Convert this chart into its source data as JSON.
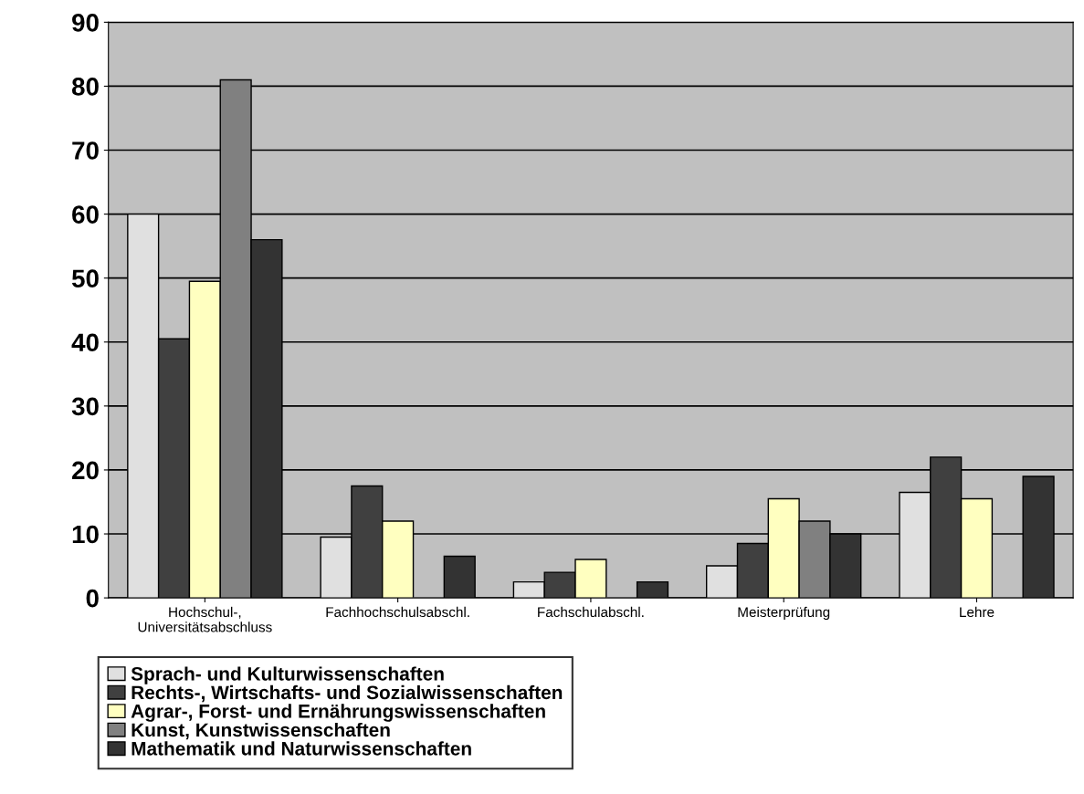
{
  "chart_data": {
    "type": "bar",
    "categories": [
      "Hochschul-,\nUniversitätsabschluss",
      "Fachhochschulsabschl.",
      "Fachschulabschl.",
      "Meisterprüfung",
      "Lehre"
    ],
    "series": [
      {
        "name": "Sprach- und Kulturwissenschaften",
        "color": "#e0e0e0",
        "values": [
          60,
          9.5,
          2.5,
          5,
          16.5
        ]
      },
      {
        "name": "Rechts-, Wirtschafts- und Sozialwissenschaften",
        "color": "#404040",
        "values": [
          40.5,
          17.5,
          4,
          8.5,
          22
        ]
      },
      {
        "name": "Agrar-, Forst- und Ernährungswissenschaften",
        "color": "#ffffc0",
        "values": [
          49.5,
          12,
          6,
          15.5,
          15.5
        ]
      },
      {
        "name": "Kunst, Kunstwissenschaften",
        "color": "#808080",
        "values": [
          81,
          0,
          0,
          12,
          0
        ]
      },
      {
        "name": "Mathematik und Naturwissenschaften",
        "color": "#333333",
        "values": [
          56,
          6.5,
          2.5,
          10,
          19
        ]
      }
    ],
    "ylim": [
      0,
      90
    ],
    "yticks": [
      0,
      10,
      20,
      30,
      40,
      50,
      60,
      70,
      80,
      90
    ],
    "grid": "y",
    "legend": "bottom"
  }
}
